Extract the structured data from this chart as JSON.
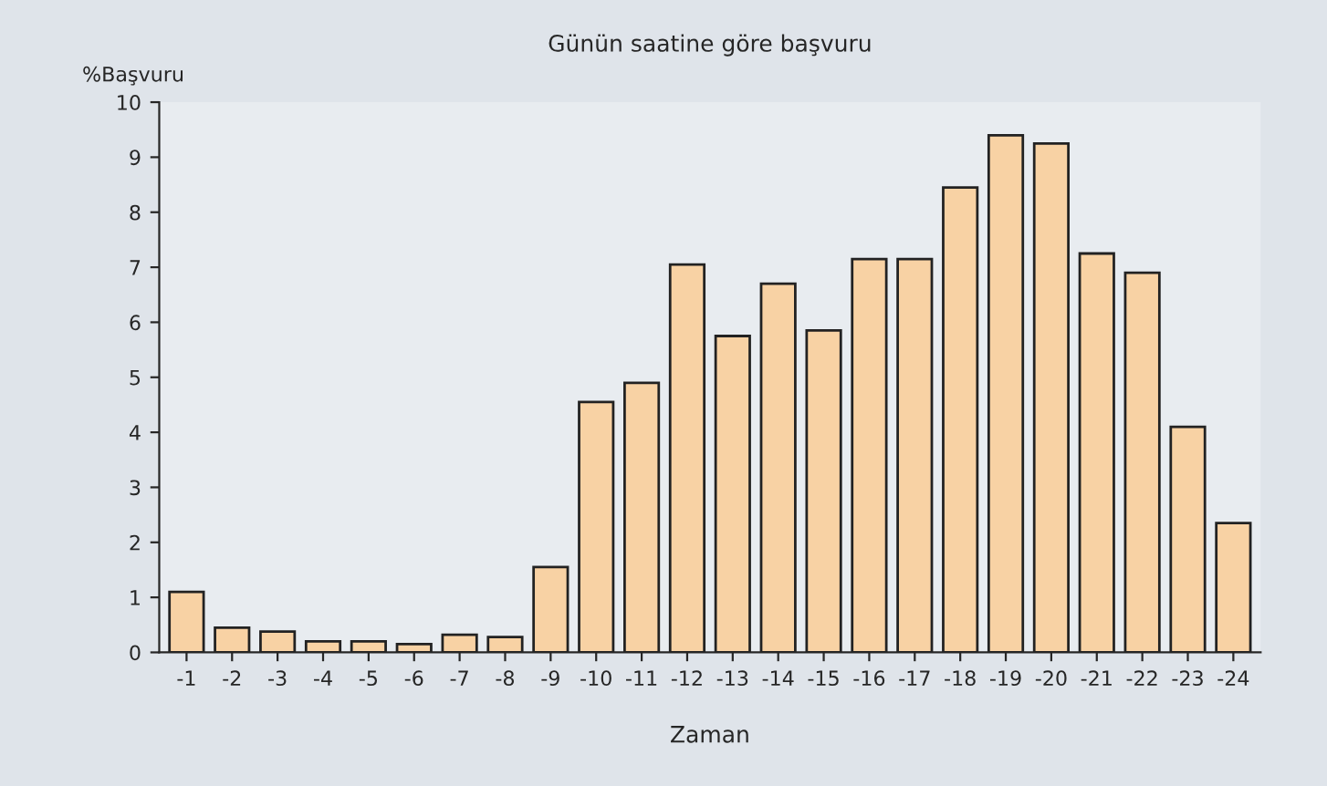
{
  "chart_data": {
    "type": "bar",
    "title": "Günün saatine göre başvuru",
    "ylabel": "%Başvuru",
    "xlabel": "Zaman",
    "categories": [
      "-1",
      "-2",
      "-3",
      "-4",
      "-5",
      "-6",
      "-7",
      "-8",
      "-9",
      "-10",
      "-11",
      "-12",
      "-13",
      "-14",
      "-15",
      "-16",
      "-17",
      "-18",
      "-19",
      "-20",
      "-21",
      "-22",
      "-23",
      "-24"
    ],
    "values": [
      1.1,
      0.45,
      0.38,
      0.2,
      0.2,
      0.15,
      0.32,
      0.28,
      1.55,
      4.55,
      4.9,
      7.05,
      5.75,
      6.7,
      5.85,
      7.15,
      7.15,
      8.45,
      9.4,
      9.25,
      7.25,
      6.9,
      4.1,
      2.35
    ],
    "color": "#f8d2a4",
    "ylim": [
      0,
      10
    ],
    "yticks": [
      0,
      1,
      2,
      3,
      4,
      5,
      6,
      7,
      8,
      9,
      10
    ],
    "grid": false,
    "legend": false
  }
}
